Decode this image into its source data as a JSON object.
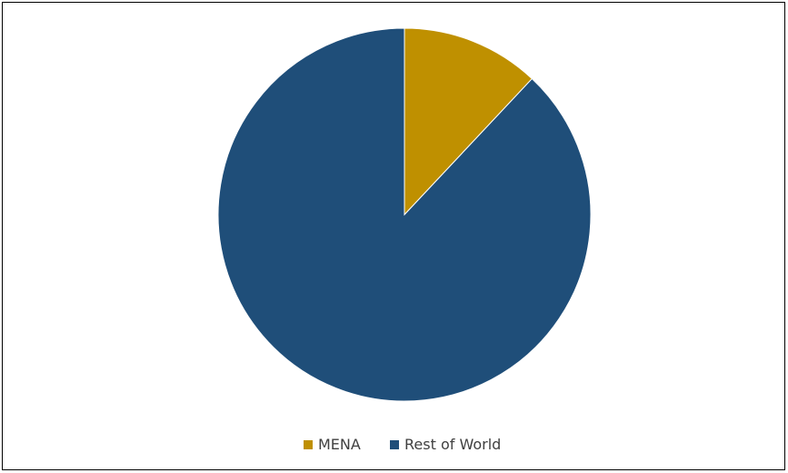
{
  "chart_data": {
    "type": "pie",
    "title": "",
    "categories": [
      "MENA",
      "Rest of World"
    ],
    "values": [
      12,
      88
    ],
    "colors": [
      "#bf9000",
      "#1f4e79"
    ],
    "start_angle_deg": 0,
    "direction": "clockwise",
    "legend": {
      "position": "bottom",
      "entries": [
        "MENA",
        "Rest of World"
      ]
    }
  }
}
